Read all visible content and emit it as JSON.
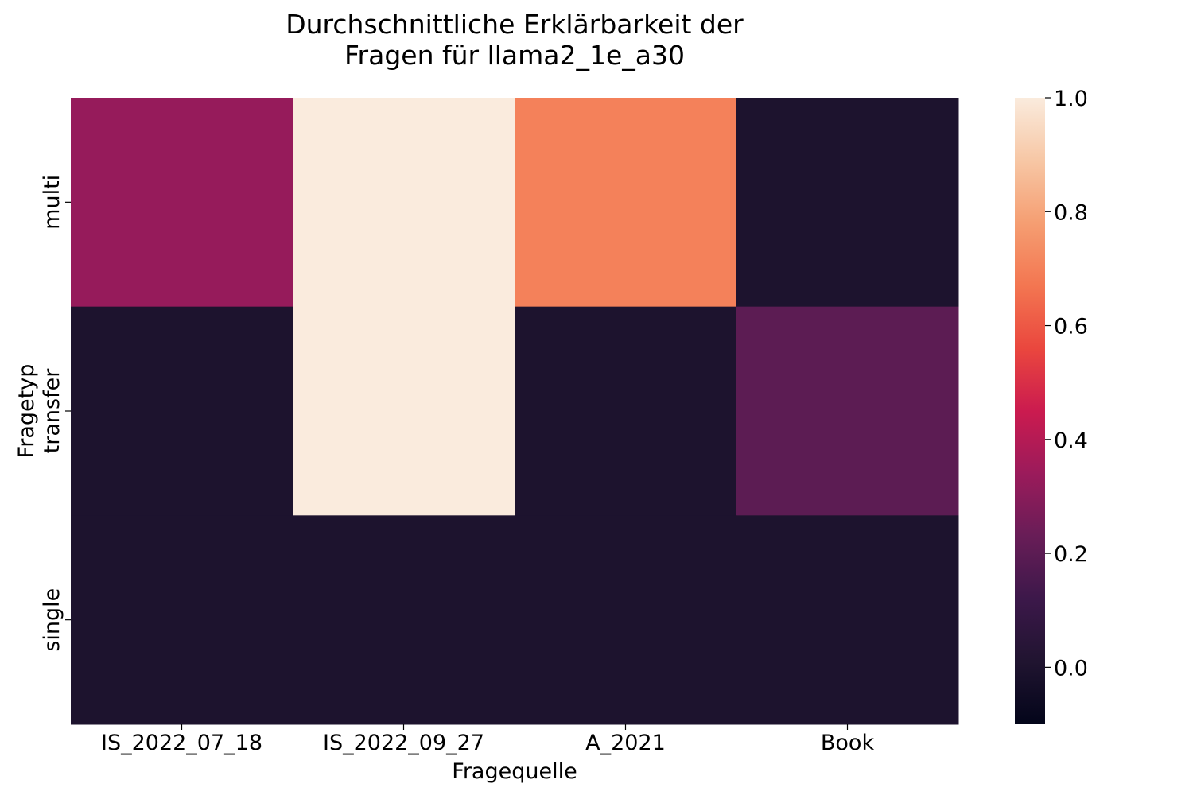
{
  "chart_data": {
    "type": "heatmap",
    "title": [
      "Durchschnittliche Erklärbarkeit der",
      "Fragen für llama2_1e_a30"
    ],
    "xlabel": "Fragequelle",
    "ylabel": "Fragetyp",
    "x_categories": [
      "IS_2022_07_18",
      "IS_2022_09_27",
      "A_2021",
      "Book"
    ],
    "y_categories": [
      "multi",
      "transfer",
      "single"
    ],
    "values": [
      [
        0.33,
        1.0,
        0.7,
        0.0
      ],
      [
        0.0,
        1.0,
        0.0,
        0.2
      ],
      [
        0.0,
        0.0,
        0.0,
        0.0
      ]
    ],
    "colorbar": {
      "min": -0.1,
      "max": 1.0,
      "ticks": [
        0.0,
        0.2,
        0.4,
        0.6,
        0.8,
        1.0
      ],
      "tick_labels": [
        "0.0",
        "0.2",
        "0.4",
        "0.6",
        "0.8",
        "1.0"
      ],
      "colormap": "rocket"
    },
    "grid": false,
    "legend": "colorbar-right"
  }
}
